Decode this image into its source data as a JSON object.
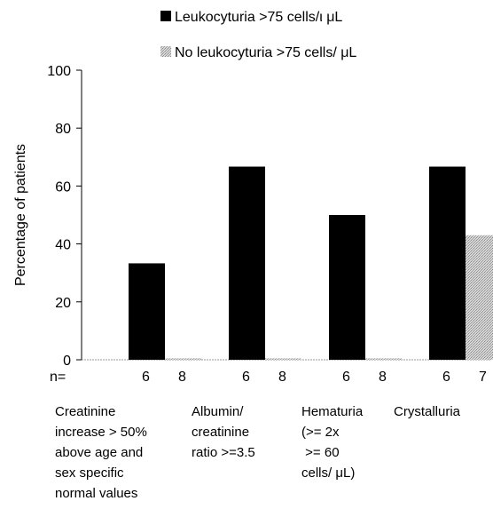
{
  "chart_data": {
    "type": "bar",
    "title": "",
    "xlabel": "",
    "ylabel": "Percentage of patients",
    "ylim": [
      0,
      100
    ],
    "yticks": [
      0,
      20,
      40,
      60,
      80,
      100
    ],
    "grid": false,
    "legend_position": "top",
    "n_prefix": "n=",
    "categories": [
      [
        "Creatinine",
        "increase > 50%",
        "above age and",
        "sex specific",
        "normal values"
      ],
      [
        "Albumin/",
        "creatinine",
        "ratio >=3.5"
      ],
      [
        "Hematuria",
        "(>= 2x",
        " >= 60",
        "cells/  μL)"
      ],
      [
        "Crystalluria"
      ]
    ],
    "series": [
      {
        "name": "Leukocyturia >75 cells/ι μL",
        "color": "#000000",
        "values": [
          33.3,
          66.7,
          50.0,
          66.7
        ],
        "n": [
          "6",
          "6",
          "6",
          "6"
        ]
      },
      {
        "name": "No leukocyturia >75 cells/ μL",
        "color": "#bdbdbd",
        "values": [
          0.5,
          0.5,
          0.5,
          43.0
        ],
        "n": [
          "8",
          "8",
          "8",
          "7"
        ]
      }
    ]
  }
}
